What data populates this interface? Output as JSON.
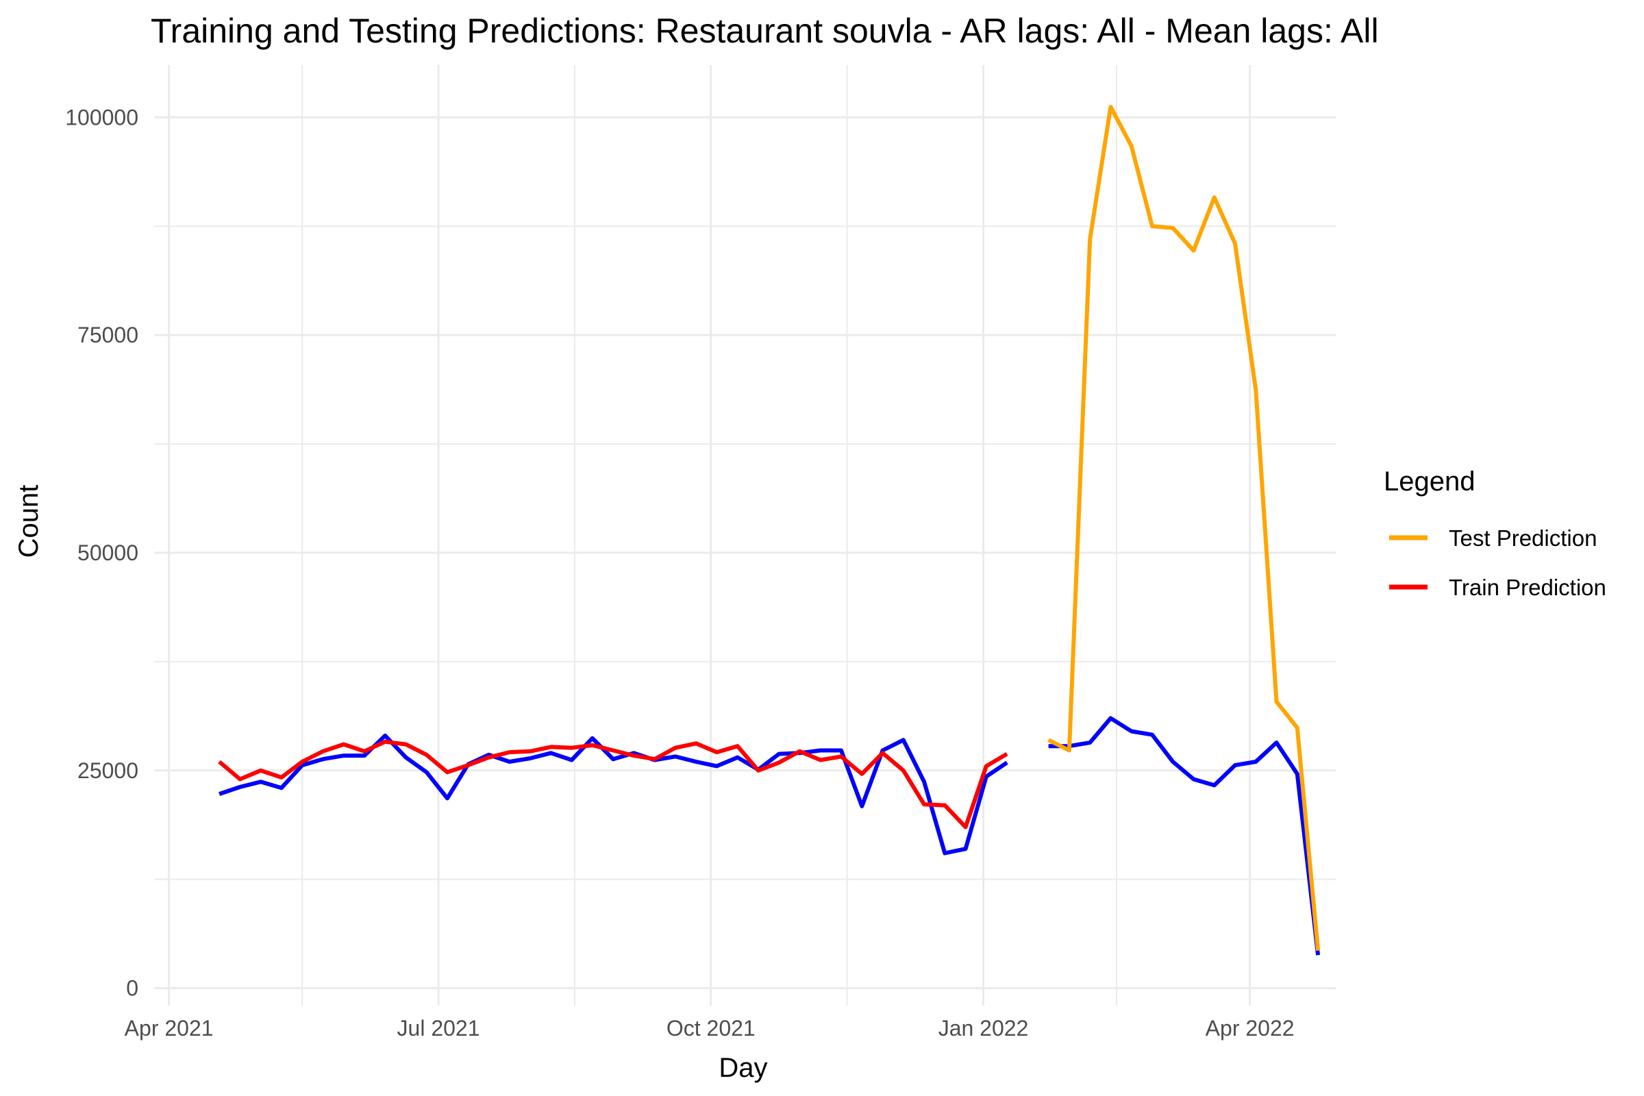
{
  "chart_data": {
    "type": "line",
    "title": "Training and Testing Predictions: Restaurant souvla - AR lags: All - Mean lags: All",
    "xlabel": "Day",
    "ylabel": "Count",
    "x_axis": {
      "type": "date",
      "range": [
        "2021-03-27",
        "2022-04-30"
      ],
      "ticks": [
        {
          "date": "2021-04-01",
          "label": "Apr 2021"
        },
        {
          "date": "2021-07-01",
          "label": "Jul 2021"
        },
        {
          "date": "2021-10-01",
          "label": "Oct 2021"
        },
        {
          "date": "2022-01-01",
          "label": "Jan 2022"
        },
        {
          "date": "2022-04-01",
          "label": "Apr 2022"
        }
      ],
      "minor_ticks": [
        "2021-05-16",
        "2021-08-16",
        "2021-11-16",
        "2022-02-15"
      ]
    },
    "y_axis": {
      "range": [
        -2000,
        106000
      ],
      "ticks": [
        {
          "value": 0,
          "label": "0"
        },
        {
          "value": 25000,
          "label": "25000"
        },
        {
          "value": 50000,
          "label": "50000"
        },
        {
          "value": 75000,
          "label": "75000"
        },
        {
          "value": 100000,
          "label": "100000"
        }
      ],
      "minor_ticks": [
        12500,
        37500,
        62500,
        87500
      ]
    },
    "grid": true,
    "legend": {
      "title": "Legend",
      "position": "right",
      "entries": [
        {
          "label": "Test Prediction",
          "color": "#FFA500"
        },
        {
          "label": "Train Prediction",
          "color": "#FF0000"
        }
      ]
    },
    "series": [
      {
        "role": "actual-train",
        "color": "#0000FF",
        "in_legend": false,
        "points": [
          [
            "2021-04-18",
            22300
          ],
          [
            "2021-04-25",
            23100
          ],
          [
            "2021-05-02",
            23700
          ],
          [
            "2021-05-09",
            23000
          ],
          [
            "2021-05-16",
            25600
          ],
          [
            "2021-05-23",
            26300
          ],
          [
            "2021-05-30",
            26700
          ],
          [
            "2021-06-06",
            26700
          ],
          [
            "2021-06-13",
            29000
          ],
          [
            "2021-06-20",
            26500
          ],
          [
            "2021-06-27",
            24800
          ],
          [
            "2021-07-04",
            21800
          ],
          [
            "2021-07-11",
            25700
          ],
          [
            "2021-07-18",
            26800
          ],
          [
            "2021-07-25",
            26000
          ],
          [
            "2021-08-01",
            26400
          ],
          [
            "2021-08-08",
            27000
          ],
          [
            "2021-08-15",
            26200
          ],
          [
            "2021-08-22",
            28700
          ],
          [
            "2021-08-29",
            26300
          ],
          [
            "2021-09-05",
            27000
          ],
          [
            "2021-09-12",
            26200
          ],
          [
            "2021-09-19",
            26600
          ],
          [
            "2021-09-26",
            26000
          ],
          [
            "2021-10-03",
            25500
          ],
          [
            "2021-10-10",
            26500
          ],
          [
            "2021-10-17",
            25100
          ],
          [
            "2021-10-24",
            26900
          ],
          [
            "2021-10-31",
            27000
          ],
          [
            "2021-11-07",
            27300
          ],
          [
            "2021-11-14",
            27300
          ],
          [
            "2021-11-21",
            20900
          ],
          [
            "2021-11-28",
            27300
          ],
          [
            "2021-12-05",
            28500
          ],
          [
            "2021-12-12",
            23700
          ],
          [
            "2021-12-19",
            15500
          ],
          [
            "2021-12-26",
            16000
          ],
          [
            "2022-01-02",
            24300
          ],
          [
            "2022-01-09",
            25900
          ]
        ]
      },
      {
        "role": "actual-test",
        "color": "#0000FF",
        "in_legend": false,
        "points": [
          [
            "2022-01-23",
            27800
          ],
          [
            "2022-01-30",
            27800
          ],
          [
            "2022-02-06",
            28200
          ],
          [
            "2022-02-13",
            31000
          ],
          [
            "2022-02-20",
            29500
          ],
          [
            "2022-02-27",
            29100
          ],
          [
            "2022-03-06",
            26000
          ],
          [
            "2022-03-13",
            24000
          ],
          [
            "2022-03-20",
            23300
          ],
          [
            "2022-03-27",
            25600
          ],
          [
            "2022-04-03",
            26000
          ],
          [
            "2022-04-10",
            28200
          ],
          [
            "2022-04-17",
            24600
          ],
          [
            "2022-04-24",
            3800
          ]
        ]
      },
      {
        "role": "train-prediction",
        "name": "Train Prediction",
        "color": "#FF0000",
        "in_legend": true,
        "points": [
          [
            "2021-04-18",
            26000
          ],
          [
            "2021-04-25",
            24000
          ],
          [
            "2021-05-02",
            25000
          ],
          [
            "2021-05-09",
            24200
          ],
          [
            "2021-05-16",
            26000
          ],
          [
            "2021-05-23",
            27200
          ],
          [
            "2021-05-30",
            28000
          ],
          [
            "2021-06-06",
            27200
          ],
          [
            "2021-06-13",
            28300
          ],
          [
            "2021-06-20",
            28000
          ],
          [
            "2021-06-27",
            26800
          ],
          [
            "2021-07-04",
            24800
          ],
          [
            "2021-07-11",
            25600
          ],
          [
            "2021-07-18",
            26500
          ],
          [
            "2021-07-25",
            27100
          ],
          [
            "2021-08-01",
            27200
          ],
          [
            "2021-08-08",
            27700
          ],
          [
            "2021-08-15",
            27600
          ],
          [
            "2021-08-22",
            27900
          ],
          [
            "2021-08-29",
            27300
          ],
          [
            "2021-09-05",
            26700
          ],
          [
            "2021-09-12",
            26300
          ],
          [
            "2021-09-19",
            27600
          ],
          [
            "2021-09-26",
            28100
          ],
          [
            "2021-10-03",
            27100
          ],
          [
            "2021-10-10",
            27800
          ],
          [
            "2021-10-17",
            25000
          ],
          [
            "2021-10-24",
            25900
          ],
          [
            "2021-10-31",
            27200
          ],
          [
            "2021-11-07",
            26200
          ],
          [
            "2021-11-14",
            26600
          ],
          [
            "2021-11-21",
            24600
          ],
          [
            "2021-11-28",
            27000
          ],
          [
            "2021-12-05",
            25000
          ],
          [
            "2021-12-12",
            21100
          ],
          [
            "2021-12-19",
            21000
          ],
          [
            "2021-12-26",
            18500
          ],
          [
            "2022-01-02",
            25500
          ],
          [
            "2022-01-09",
            26900
          ]
        ]
      },
      {
        "role": "test-prediction",
        "name": "Test Prediction",
        "color": "#FFA500",
        "in_legend": true,
        "points": [
          [
            "2022-01-23",
            28500
          ],
          [
            "2022-01-30",
            27300
          ],
          [
            "2022-02-06",
            86000
          ],
          [
            "2022-02-13",
            101200
          ],
          [
            "2022-02-20",
            96700
          ],
          [
            "2022-02-27",
            87500
          ],
          [
            "2022-03-06",
            87300
          ],
          [
            "2022-03-13",
            84700
          ],
          [
            "2022-03-20",
            90800
          ],
          [
            "2022-03-27",
            85500
          ],
          [
            "2022-04-03",
            68700
          ],
          [
            "2022-04-10",
            32900
          ],
          [
            "2022-04-17",
            29900
          ],
          [
            "2022-04-24",
            4300
          ]
        ]
      }
    ]
  }
}
